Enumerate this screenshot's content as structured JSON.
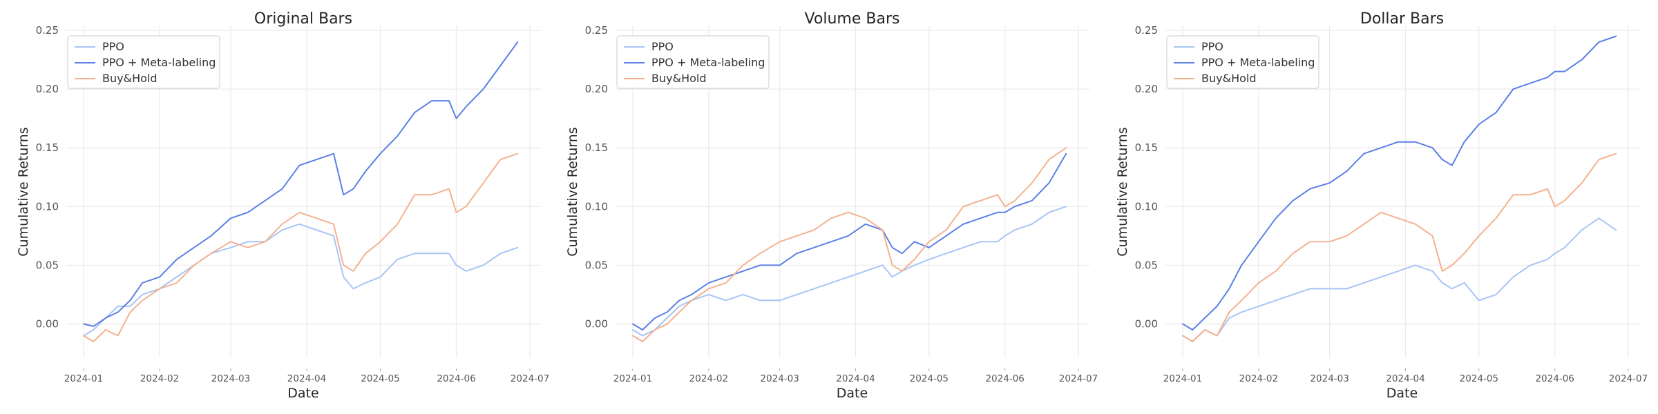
{
  "chart_data": [
    {
      "type": "line",
      "title": "Original Bars",
      "xlabel": "Date",
      "ylabel": "Cumulative Returns",
      "x_range": [
        "2024-01-01",
        "2024-07-01"
      ],
      "xticks": [
        "2024-01",
        "2024-02",
        "2024-03",
        "2024-04",
        "2024-05",
        "2024-06",
        "2024-07"
      ],
      "ylim": [
        -0.025,
        0.25
      ],
      "yticks": [
        "0.00",
        "0.05",
        "0.10",
        "0.15",
        "0.20",
        "0.25"
      ],
      "grid": true,
      "legend_position": "top-left",
      "series": [
        {
          "name": "PPO",
          "color": "#a9c4f5",
          "x": [
            "2024-01-01",
            "2024-01-05",
            "2024-01-10",
            "2024-01-15",
            "2024-01-20",
            "2024-01-25",
            "2024-02-01",
            "2024-02-08",
            "2024-02-15",
            "2024-02-22",
            "2024-03-01",
            "2024-03-08",
            "2024-03-15",
            "2024-03-22",
            "2024-03-29",
            "2024-04-05",
            "2024-04-12",
            "2024-04-16",
            "2024-04-20",
            "2024-04-25",
            "2024-05-01",
            "2024-05-08",
            "2024-05-15",
            "2024-05-22",
            "2024-05-29",
            "2024-06-01",
            "2024-06-05",
            "2024-06-12",
            "2024-06-19",
            "2024-06-26"
          ],
          "y": [
            -0.01,
            -0.005,
            0.005,
            0.015,
            0.015,
            0.025,
            0.03,
            0.04,
            0.05,
            0.06,
            0.065,
            0.07,
            0.07,
            0.08,
            0.085,
            0.08,
            0.075,
            0.04,
            0.03,
            0.035,
            0.04,
            0.055,
            0.06,
            0.06,
            0.06,
            0.05,
            0.045,
            0.05,
            0.06,
            0.065
          ]
        },
        {
          "name": "PPO + Meta-labeling",
          "color": "#5b7fe6",
          "x": [
            "2024-01-01",
            "2024-01-05",
            "2024-01-10",
            "2024-01-15",
            "2024-01-20",
            "2024-01-25",
            "2024-02-01",
            "2024-02-08",
            "2024-02-15",
            "2024-02-22",
            "2024-03-01",
            "2024-03-08",
            "2024-03-15",
            "2024-03-22",
            "2024-03-29",
            "2024-04-05",
            "2024-04-12",
            "2024-04-16",
            "2024-04-20",
            "2024-04-25",
            "2024-05-01",
            "2024-05-08",
            "2024-05-15",
            "2024-05-22",
            "2024-05-29",
            "2024-06-01",
            "2024-06-05",
            "2024-06-12",
            "2024-06-19",
            "2024-06-26"
          ],
          "y": [
            0.0,
            -0.002,
            0.005,
            0.01,
            0.02,
            0.035,
            0.04,
            0.055,
            0.065,
            0.075,
            0.09,
            0.095,
            0.105,
            0.115,
            0.135,
            0.14,
            0.145,
            0.11,
            0.115,
            0.13,
            0.145,
            0.16,
            0.18,
            0.19,
            0.19,
            0.175,
            0.185,
            0.2,
            0.22,
            0.24
          ]
        },
        {
          "name": "Buy&Hold",
          "color": "#f4b18f",
          "x": [
            "2024-01-01",
            "2024-01-05",
            "2024-01-10",
            "2024-01-15",
            "2024-01-20",
            "2024-01-25",
            "2024-02-01",
            "2024-02-08",
            "2024-02-15",
            "2024-02-22",
            "2024-03-01",
            "2024-03-08",
            "2024-03-15",
            "2024-03-22",
            "2024-03-29",
            "2024-04-05",
            "2024-04-12",
            "2024-04-16",
            "2024-04-20",
            "2024-04-25",
            "2024-05-01",
            "2024-05-08",
            "2024-05-15",
            "2024-05-22",
            "2024-05-29",
            "2024-06-01",
            "2024-06-05",
            "2024-06-12",
            "2024-06-19",
            "2024-06-26"
          ],
          "y": [
            -0.01,
            -0.015,
            -0.005,
            -0.01,
            0.01,
            0.02,
            0.03,
            0.035,
            0.05,
            0.06,
            0.07,
            0.065,
            0.07,
            0.085,
            0.095,
            0.09,
            0.085,
            0.05,
            0.045,
            0.06,
            0.07,
            0.085,
            0.11,
            0.11,
            0.115,
            0.095,
            0.1,
            0.12,
            0.14,
            0.145
          ]
        }
      ]
    },
    {
      "type": "line",
      "title": "Volume Bars",
      "xlabel": "Date",
      "ylabel": "Cumulative Returns",
      "x_range": [
        "2024-01-01",
        "2024-07-01"
      ],
      "xticks": [
        "2024-01",
        "2024-02",
        "2024-03",
        "2024-04",
        "2024-05",
        "2024-06",
        "2024-07"
      ],
      "ylim": [
        -0.025,
        0.25
      ],
      "yticks": [
        "0.00",
        "0.05",
        "0.10",
        "0.15",
        "0.20",
        "0.25"
      ],
      "grid": true,
      "legend_position": "top-left",
      "series": [
        {
          "name": "PPO",
          "color": "#a9c4f5",
          "x": [
            "2024-01-01",
            "2024-01-05",
            "2024-01-10",
            "2024-01-15",
            "2024-01-20",
            "2024-01-25",
            "2024-02-01",
            "2024-02-08",
            "2024-02-15",
            "2024-02-22",
            "2024-03-01",
            "2024-03-08",
            "2024-03-15",
            "2024-03-22",
            "2024-03-29",
            "2024-04-05",
            "2024-04-12",
            "2024-04-16",
            "2024-04-20",
            "2024-04-25",
            "2024-05-01",
            "2024-05-08",
            "2024-05-15",
            "2024-05-22",
            "2024-05-29",
            "2024-06-01",
            "2024-06-05",
            "2024-06-12",
            "2024-06-19",
            "2024-06-26"
          ],
          "y": [
            -0.005,
            -0.01,
            -0.005,
            0.005,
            0.015,
            0.02,
            0.025,
            0.02,
            0.025,
            0.02,
            0.02,
            0.025,
            0.03,
            0.035,
            0.04,
            0.045,
            0.05,
            0.04,
            0.045,
            0.05,
            0.055,
            0.06,
            0.065,
            0.07,
            0.07,
            0.075,
            0.08,
            0.085,
            0.095,
            0.1
          ]
        },
        {
          "name": "PPO + Meta-labeling",
          "color": "#5b7fe6",
          "x": [
            "2024-01-01",
            "2024-01-05",
            "2024-01-10",
            "2024-01-15",
            "2024-01-20",
            "2024-01-25",
            "2024-02-01",
            "2024-02-08",
            "2024-02-15",
            "2024-02-22",
            "2024-03-01",
            "2024-03-08",
            "2024-03-15",
            "2024-03-22",
            "2024-03-29",
            "2024-04-05",
            "2024-04-12",
            "2024-04-16",
            "2024-04-20",
            "2024-04-25",
            "2024-05-01",
            "2024-05-08",
            "2024-05-15",
            "2024-05-22",
            "2024-05-29",
            "2024-06-01",
            "2024-06-05",
            "2024-06-12",
            "2024-06-19",
            "2024-06-26"
          ],
          "y": [
            0.0,
            -0.005,
            0.005,
            0.01,
            0.02,
            0.025,
            0.035,
            0.04,
            0.045,
            0.05,
            0.05,
            0.06,
            0.065,
            0.07,
            0.075,
            0.085,
            0.08,
            0.065,
            0.06,
            0.07,
            0.065,
            0.075,
            0.085,
            0.09,
            0.095,
            0.095,
            0.1,
            0.105,
            0.12,
            0.145
          ]
        },
        {
          "name": "Buy&Hold",
          "color": "#f4b18f",
          "x": [
            "2024-01-01",
            "2024-01-05",
            "2024-01-10",
            "2024-01-15",
            "2024-01-20",
            "2024-01-25",
            "2024-02-01",
            "2024-02-08",
            "2024-02-15",
            "2024-02-22",
            "2024-03-01",
            "2024-03-08",
            "2024-03-15",
            "2024-03-22",
            "2024-03-29",
            "2024-04-05",
            "2024-04-12",
            "2024-04-16",
            "2024-04-20",
            "2024-04-25",
            "2024-05-01",
            "2024-05-08",
            "2024-05-15",
            "2024-05-22",
            "2024-05-29",
            "2024-06-01",
            "2024-06-05",
            "2024-06-12",
            "2024-06-19",
            "2024-06-26"
          ],
          "y": [
            -0.01,
            -0.015,
            -0.005,
            0.0,
            0.01,
            0.02,
            0.03,
            0.035,
            0.05,
            0.06,
            0.07,
            0.075,
            0.08,
            0.09,
            0.095,
            0.09,
            0.08,
            0.05,
            0.045,
            0.055,
            0.07,
            0.08,
            0.1,
            0.105,
            0.11,
            0.1,
            0.105,
            0.12,
            0.14,
            0.15
          ]
        }
      ]
    },
    {
      "type": "line",
      "title": "Dollar Bars",
      "xlabel": "Date",
      "ylabel": "Cumulative Returns",
      "x_range": [
        "2024-01-01",
        "2024-07-01"
      ],
      "xticks": [
        "2024-01",
        "2024-02",
        "2024-03",
        "2024-04",
        "2024-05",
        "2024-06",
        "2024-07"
      ],
      "ylim": [
        -0.025,
        0.25
      ],
      "yticks": [
        "0.00",
        "0.05",
        "0.10",
        "0.15",
        "0.20",
        "0.25"
      ],
      "grid": true,
      "legend_position": "top-left",
      "series": [
        {
          "name": "PPO",
          "color": "#a9c4f5",
          "x": [
            "2024-01-01",
            "2024-01-05",
            "2024-01-10",
            "2024-01-15",
            "2024-01-20",
            "2024-01-25",
            "2024-02-01",
            "2024-02-08",
            "2024-02-15",
            "2024-02-22",
            "2024-03-01",
            "2024-03-08",
            "2024-03-15",
            "2024-03-22",
            "2024-03-29",
            "2024-04-05",
            "2024-04-12",
            "2024-04-16",
            "2024-04-20",
            "2024-04-25",
            "2024-05-01",
            "2024-05-08",
            "2024-05-15",
            "2024-05-22",
            "2024-05-29",
            "2024-06-01",
            "2024-06-05",
            "2024-06-12",
            "2024-06-19",
            "2024-06-26"
          ],
          "y": [
            -0.01,
            -0.015,
            -0.005,
            -0.01,
            0.005,
            0.01,
            0.015,
            0.02,
            0.025,
            0.03,
            0.03,
            0.03,
            0.035,
            0.04,
            0.045,
            0.05,
            0.045,
            0.035,
            0.03,
            0.035,
            0.02,
            0.025,
            0.04,
            0.05,
            0.055,
            0.06,
            0.065,
            0.08,
            0.09,
            0.08
          ]
        },
        {
          "name": "PPO + Meta-labeling",
          "color": "#5b7fe6",
          "x": [
            "2024-01-01",
            "2024-01-05",
            "2024-01-10",
            "2024-01-15",
            "2024-01-20",
            "2024-01-25",
            "2024-02-01",
            "2024-02-08",
            "2024-02-15",
            "2024-02-22",
            "2024-03-01",
            "2024-03-08",
            "2024-03-15",
            "2024-03-22",
            "2024-03-29",
            "2024-04-05",
            "2024-04-12",
            "2024-04-16",
            "2024-04-20",
            "2024-04-25",
            "2024-05-01",
            "2024-05-08",
            "2024-05-15",
            "2024-05-22",
            "2024-05-29",
            "2024-06-01",
            "2024-06-05",
            "2024-06-12",
            "2024-06-19",
            "2024-06-26"
          ],
          "y": [
            0.0,
            -0.005,
            0.005,
            0.015,
            0.03,
            0.05,
            0.07,
            0.09,
            0.105,
            0.115,
            0.12,
            0.13,
            0.145,
            0.15,
            0.155,
            0.155,
            0.15,
            0.14,
            0.135,
            0.155,
            0.17,
            0.18,
            0.2,
            0.205,
            0.21,
            0.215,
            0.215,
            0.225,
            0.24,
            0.245
          ]
        },
        {
          "name": "Buy&Hold",
          "color": "#f4b18f",
          "x": [
            "2024-01-01",
            "2024-01-05",
            "2024-01-10",
            "2024-01-15",
            "2024-01-20",
            "2024-01-25",
            "2024-02-01",
            "2024-02-08",
            "2024-02-15",
            "2024-02-22",
            "2024-03-01",
            "2024-03-08",
            "2024-03-15",
            "2024-03-22",
            "2024-03-29",
            "2024-04-05",
            "2024-04-12",
            "2024-04-16",
            "2024-04-20",
            "2024-04-25",
            "2024-05-01",
            "2024-05-08",
            "2024-05-15",
            "2024-05-22",
            "2024-05-29",
            "2024-06-01",
            "2024-06-05",
            "2024-06-12",
            "2024-06-19",
            "2024-06-26"
          ],
          "y": [
            -0.01,
            -0.015,
            -0.005,
            -0.01,
            0.01,
            0.02,
            0.035,
            0.045,
            0.06,
            0.07,
            0.07,
            0.075,
            0.085,
            0.095,
            0.09,
            0.085,
            0.075,
            0.045,
            0.05,
            0.06,
            0.075,
            0.09,
            0.11,
            0.11,
            0.115,
            0.1,
            0.105,
            0.12,
            0.14,
            0.145
          ]
        }
      ]
    }
  ]
}
